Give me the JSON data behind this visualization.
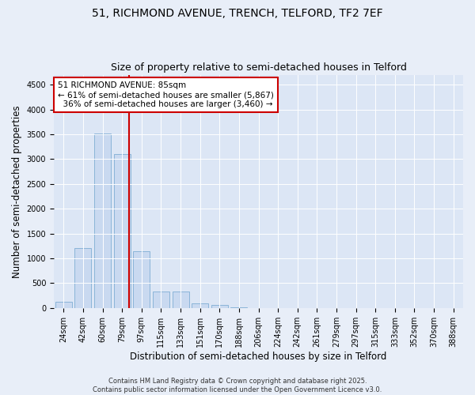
{
  "title1": "51, RICHMOND AVENUE, TRENCH, TELFORD, TF2 7EF",
  "title2": "Size of property relative to semi-detached houses in Telford",
  "xlabel": "Distribution of semi-detached houses by size in Telford",
  "ylabel": "Number of semi-detached properties",
  "categories": [
    "24sqm",
    "42sqm",
    "60sqm",
    "79sqm",
    "97sqm",
    "115sqm",
    "133sqm",
    "151sqm",
    "170sqm",
    "188sqm",
    "206sqm",
    "224sqm",
    "242sqm",
    "261sqm",
    "279sqm",
    "297sqm",
    "315sqm",
    "333sqm",
    "352sqm",
    "370sqm",
    "388sqm"
  ],
  "values": [
    120,
    1200,
    3520,
    3100,
    1150,
    330,
    330,
    100,
    55,
    20,
    5,
    2,
    1,
    1,
    0,
    0,
    0,
    0,
    0,
    0,
    0
  ],
  "bar_color": "#c9d9f0",
  "bar_edge_color": "#8ab4d8",
  "property_size_sqm": 85,
  "annotation_line1": "51 RICHMOND AVENUE: 85sqm",
  "annotation_line2": "← 61% of semi-detached houses are smaller (5,867)",
  "annotation_line3": "  36% of semi-detached houses are larger (3,460) →",
  "annotation_box_color": "#ffffff",
  "annotation_box_edge": "#cc0000",
  "vline_color": "#cc0000",
  "ylim": [
    0,
    4700
  ],
  "yticks": [
    0,
    500,
    1000,
    1500,
    2000,
    2500,
    3000,
    3500,
    4000,
    4500
  ],
  "bg_color": "#e8eef8",
  "plot_bg": "#dce6f5",
  "footer": "Contains HM Land Registry data © Crown copyright and database right 2025.\nContains public sector information licensed under the Open Government Licence v3.0.",
  "title_fontsize": 10,
  "subtitle_fontsize": 9,
  "tick_fontsize": 7,
  "label_fontsize": 8.5,
  "ann_fontsize": 7.5,
  "footer_fontsize": 6
}
